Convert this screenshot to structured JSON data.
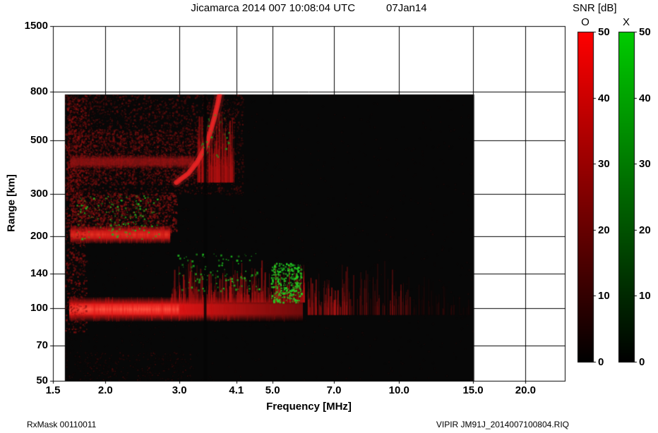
{
  "title": {
    "main": "Jicamarca 2014 007 10:08:04 UTC",
    "date": "07Jan14"
  },
  "footer": {
    "left": "RxMask 00110011",
    "right": "VIPIR  JM91J_2014007100804.RIQ"
  },
  "chart_data": {
    "type": "heatmap",
    "title": "Jicamarca 2014 007 10:08:04 UTC   07Jan14",
    "xlabel": "Frequency [MHz]",
    "ylabel": "Range [km]",
    "x_scale": "log",
    "y_scale": "log",
    "x_range": [
      1.5,
      24.8
    ],
    "y_range": [
      50,
      1500
    ],
    "x_ticks": [
      1.5,
      2.0,
      3.0,
      4.1,
      5.0,
      7.0,
      10.0,
      15.0,
      20.0
    ],
    "x_tick_labels": [
      "1.5",
      "2.0",
      "3.0",
      "4.1",
      "5.0",
      "7.0",
      "10.0",
      "15.0",
      "20.0"
    ],
    "y_ticks": [
      1500,
      800,
      500,
      300,
      200,
      140,
      100,
      70,
      50
    ],
    "y_tick_labels": [
      "1500",
      "800",
      "500",
      "300",
      "200",
      "140",
      "100",
      "70",
      "50"
    ],
    "data_extent": {
      "f": [
        1.6,
        15.1
      ],
      "km": [
        50,
        780
      ]
    },
    "colorbar_title": "SNR [dB]",
    "colorbars": [
      {
        "label": "O",
        "color": "#ff0000",
        "min": 0,
        "max": 50,
        "ticks": [
          0,
          10,
          20,
          30,
          40,
          50
        ]
      },
      {
        "label": "X",
        "color": "#00cc00",
        "min": 0,
        "max": 50,
        "ticks": [
          0,
          10,
          20,
          30,
          40,
          50
        ]
      }
    ],
    "features": [
      {
        "name": "background",
        "kind": "fill",
        "f": [
          1.6,
          15.1
        ],
        "km": [
          50,
          780
        ],
        "color": "#070707"
      },
      {
        "name": "ambient-noise",
        "kind": "speckle",
        "f": [
          1.6,
          15.1
        ],
        "km": [
          50,
          780
        ],
        "color": "#4a0808",
        "count": 1500,
        "alpha": [
          0.04,
          0.3
        ],
        "size": 1,
        "bias": 1.6
      },
      {
        "name": "f-region-diffuse",
        "kind": "speckle",
        "f": [
          1.62,
          4.25
        ],
        "km": [
          300,
          780
        ],
        "color": "#6e0e0e",
        "count": 3000,
        "alpha": [
          0.15,
          0.6
        ],
        "size": 2,
        "bias": 1.2
      },
      {
        "name": "f-region-diffuse-2",
        "kind": "speckle",
        "f": [
          1.62,
          3.3
        ],
        "km": [
          330,
          560
        ],
        "color": "#7e1010",
        "count": 1500,
        "alpha": [
          0.2,
          0.7
        ],
        "size": 2,
        "bias": 1.1
      },
      {
        "name": "virtual-height-smear-400km",
        "kind": "band",
        "f": [
          1.65,
          3.25
        ],
        "km": [
          382,
          436
        ],
        "color": "#9c1414",
        "alpha": 0.75,
        "streaks": 140
      },
      {
        "name": "spread-f-under",
        "kind": "speckle",
        "f": [
          1.65,
          2.95
        ],
        "km": [
          208,
          305
        ],
        "color": "#8e1212",
        "count": 1400,
        "alpha": [
          0.2,
          0.75
        ],
        "size": 2,
        "bias": 1.1
      },
      {
        "name": "second-echo-200km",
        "kind": "band",
        "f": [
          1.65,
          2.85
        ],
        "km": [
          186,
          222
        ],
        "color": "#c81616",
        "core_color": "#e83424",
        "alpha": 0.95,
        "streaks": 160
      },
      {
        "name": "e-region-echo-100km",
        "kind": "band",
        "f": [
          1.64,
          5.9
        ],
        "km": [
          88,
          112
        ],
        "color": "#e01616",
        "core_color": "#ff5240",
        "core_f": [
          1.64,
          3.0
        ],
        "alpha": 1,
        "fade_from": 2.9,
        "streaks": 240
      },
      {
        "name": "sporadic-e-spread",
        "kind": "streaks",
        "f": [
          2.85,
          6.0
        ],
        "km": [
          106,
          168
        ],
        "color": "#b41414",
        "count": 300,
        "alpha": [
          0.15,
          0.8
        ]
      },
      {
        "name": "f-trace-band",
        "kind": "streaks",
        "f": [
          3.3,
          4.05
        ],
        "km": [
          335,
          780
        ],
        "color": "#b01212",
        "count": 170,
        "alpha": [
          0.15,
          0.7
        ]
      },
      {
        "name": "f-trace",
        "kind": "trace",
        "points_f": [
          2.95,
          3.15,
          3.3,
          3.45,
          3.55,
          3.64,
          3.7,
          3.74
        ],
        "points_km": [
          335,
          365,
          405,
          465,
          540,
          630,
          710,
          780
        ],
        "color": "#e62424",
        "width": 7
      },
      {
        "name": "left-edge-noise",
        "kind": "speckle",
        "f": [
          1.6,
          1.8
        ],
        "km": [
          80,
          780
        ],
        "color": "#8a1010",
        "count": 900,
        "alpha": [
          0.2,
          0.8
        ],
        "size": 2,
        "bias": 1
      },
      {
        "name": "bottom-noise",
        "kind": "speckle",
        "f": [
          1.6,
          3.2
        ],
        "km": [
          50,
          66
        ],
        "color": "#6a0c0c",
        "count": 260,
        "alpha": [
          0.1,
          0.5
        ],
        "size": 1,
        "bias": 1
      },
      {
        "name": "rfi-streaks-mid",
        "kind": "streaks",
        "f": [
          6.0,
          10.6
        ],
        "km": [
          94,
          162
        ],
        "color": "#8c1010",
        "count": 150,
        "alpha": [
          0.08,
          0.5
        ]
      },
      {
        "name": "rfi-streaks-bright",
        "kind": "streaks",
        "f": [
          6.05,
          7.5
        ],
        "km": [
          94,
          148
        ],
        "color": "#a81414",
        "count": 60,
        "alpha": [
          0.2,
          0.7
        ]
      },
      {
        "name": "rfi-streaks-high",
        "kind": "streaks",
        "f": [
          10.6,
          14.9
        ],
        "km": [
          94,
          140
        ],
        "color": "#6a0c0c",
        "count": 45,
        "alpha": [
          0.05,
          0.25
        ]
      },
      {
        "name": "interference-gap",
        "kind": "gap",
        "f": [
          3.43,
          3.48
        ],
        "km": [
          50,
          780
        ],
        "color": "#050505",
        "alpha": 0.85
      },
      {
        "name": "x-mode-e-speckles",
        "kind": "speckle",
        "f": [
          2.95,
          4.65
        ],
        "km": [
          118,
          170
        ],
        "color": "#1fba1f",
        "count": 110,
        "alpha": [
          0.4,
          1
        ],
        "size": 2,
        "bias": 1
      },
      {
        "name": "x-mode-e-cluster",
        "kind": "speckle",
        "f": [
          4.95,
          5.85
        ],
        "km": [
          106,
          155
        ],
        "color": "#23cc23",
        "count": 320,
        "alpha": [
          0.5,
          1
        ],
        "size": 2,
        "bias": 1
      },
      {
        "name": "x-mode-f-speckles",
        "kind": "speckle",
        "f": [
          1.68,
          2.68
        ],
        "km": [
          196,
          298
        ],
        "color": "#1fb41f",
        "count": 150,
        "alpha": [
          0.4,
          1
        ],
        "size": 2,
        "bias": 1
      },
      {
        "name": "x-mode-trace-speckles",
        "kind": "speckle",
        "f": [
          3.35,
          3.95
        ],
        "km": [
          430,
          650
        ],
        "color": "#1da01d",
        "count": 30,
        "alpha": [
          0.3,
          0.9
        ],
        "size": 2,
        "bias": 1
      }
    ]
  }
}
